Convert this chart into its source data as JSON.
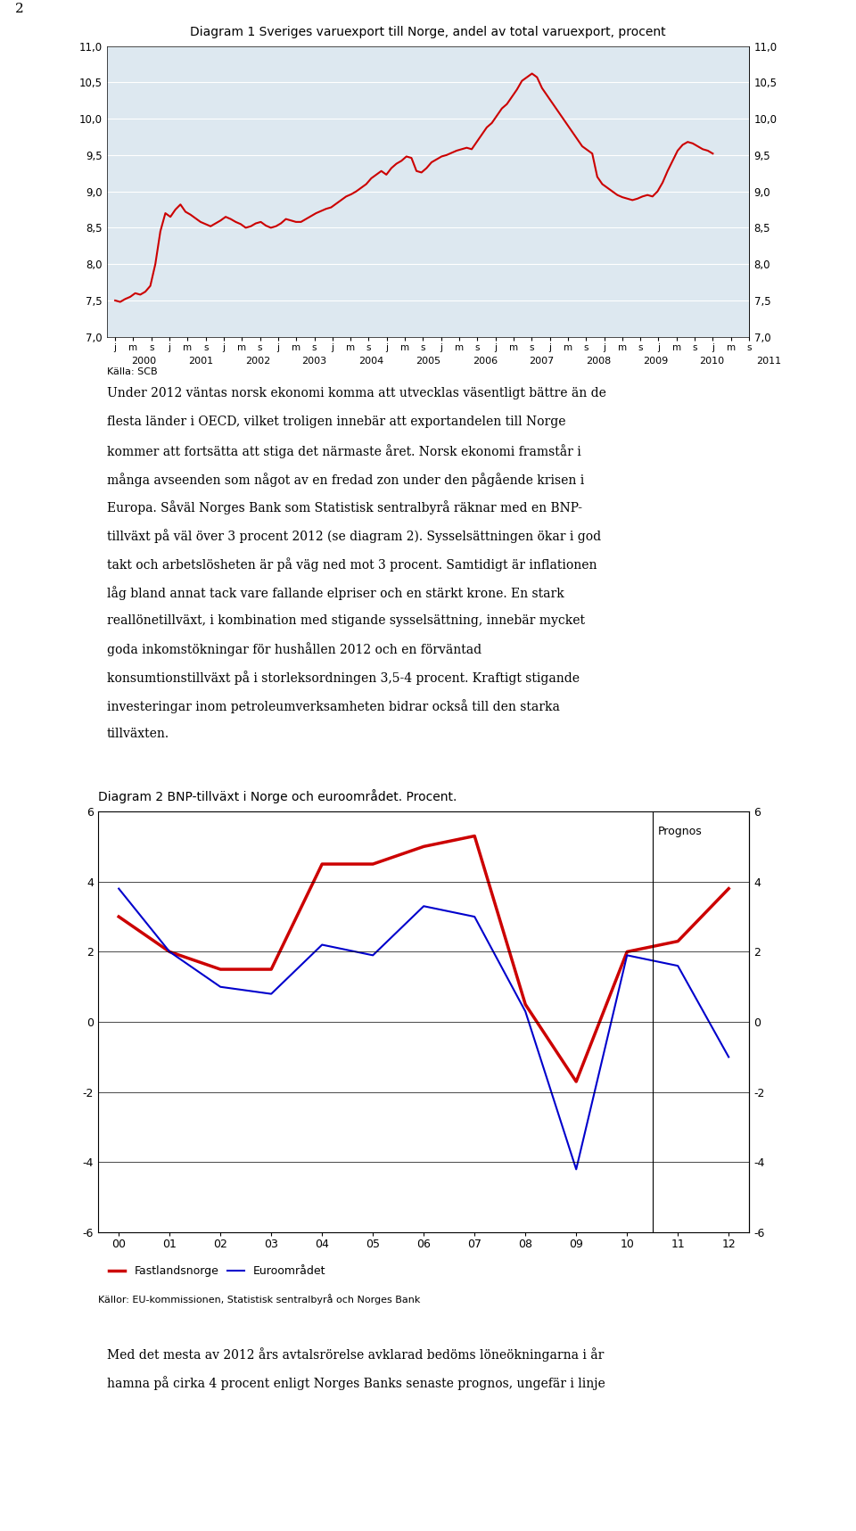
{
  "page_num": "2",
  "chart1": {
    "title": "Diagram 1 Sveriges varuexport till Norge, andel av total varuexport, procent",
    "ylim": [
      7.0,
      11.0
    ],
    "yticks": [
      7.0,
      7.5,
      8.0,
      8.5,
      9.0,
      9.5,
      10.0,
      10.5,
      11.0
    ],
    "source": "Källa: SCB",
    "years": [
      "2000",
      "2001",
      "2002",
      "2003",
      "2004",
      "2005",
      "2006",
      "2007",
      "2008",
      "2009",
      "2010",
      "2011"
    ],
    "color": "#cc0000",
    "bg_color": "#dde8f0",
    "data": [
      7.5,
      7.48,
      7.52,
      7.55,
      7.6,
      7.58,
      7.62,
      7.7,
      8.0,
      8.45,
      8.7,
      8.65,
      8.75,
      8.82,
      8.72,
      8.68,
      8.63,
      8.58,
      8.55,
      8.52,
      8.56,
      8.6,
      8.65,
      8.62,
      8.58,
      8.55,
      8.5,
      8.52,
      8.56,
      8.58,
      8.53,
      8.5,
      8.52,
      8.56,
      8.62,
      8.6,
      8.58,
      8.58,
      8.62,
      8.66,
      8.7,
      8.73,
      8.76,
      8.78,
      8.83,
      8.88,
      8.93,
      8.96,
      9.0,
      9.05,
      9.1,
      9.18,
      9.23,
      9.28,
      9.23,
      9.32,
      9.38,
      9.42,
      9.48,
      9.46,
      9.28,
      9.26,
      9.32,
      9.4,
      9.44,
      9.48,
      9.5,
      9.53,
      9.56,
      9.58,
      9.6,
      9.58,
      9.68,
      9.78,
      9.88,
      9.94,
      10.04,
      10.14,
      10.2,
      10.3,
      10.4,
      10.52,
      10.57,
      10.62,
      10.57,
      10.42,
      10.32,
      10.22,
      10.12,
      10.02,
      9.92,
      9.82,
      9.72,
      9.62,
      9.57,
      9.52,
      9.2,
      9.1,
      9.05,
      9.0,
      8.95,
      8.92,
      8.9,
      8.88,
      8.9,
      8.93,
      8.95,
      8.93,
      9.0,
      9.12,
      9.28,
      9.42,
      9.56,
      9.64,
      9.68,
      9.66,
      9.62,
      9.58,
      9.56,
      9.52
    ]
  },
  "text1_lines": [
    "Under 2012 väntas norsk ekonomi komma att utvecklas väsentligt bättre än de",
    "flesta länder i OECD, vilket troligen innebär att exportandelen till Norge",
    "kommer att fortsätta att stiga det närmaste året. Norsk ekonomi framstår i",
    "många avseenden som något av en fredad zon under den pågående krisen i",
    "Europa. Såväl Norges Bank som Statistisk sentralbyrå räknar med en BNP-",
    "tillväxt på väl över 3 procent 2012 (se diagram 2). Sysselsättningen ökar i god",
    "takt och arbetslösheten är på väg ned mot 3 procent. Samtidigt är inflationen",
    "låg bland annat tack vare fallande elpriser och en stärkt krone. En stark",
    "reallönetillväxt, i kombination med stigande sysselsättning, innebär mycket",
    "goda inkomstökningar för hushållen 2012 och en förväntad",
    "konsumtionstillväxt på i storleksordningen 3,5-4 procent. Kraftigt stigande",
    "investeringar inom petroleumverksamheten bidrar också till den starka",
    "tillväxten."
  ],
  "text1_bold_word": "diagram 2",
  "chart2": {
    "title": "Diagram 2 BNP-tillväxt i Norge och euroområdet. Procent.",
    "ylim": [
      -6,
      6
    ],
    "yticks": [
      -6,
      -4,
      -2,
      0,
      2,
      4,
      6
    ],
    "source": "Källor: EU-kommissionen, Statistisk sentralbyrå och Norges Bank",
    "years": [
      "00",
      "01",
      "02",
      "03",
      "04",
      "05",
      "06",
      "07",
      "08",
      "09",
      "10",
      "11",
      "12"
    ],
    "prognos_label": "Prognos",
    "red_data": [
      3.0,
      2.0,
      1.5,
      1.5,
      4.5,
      4.5,
      5.0,
      5.3,
      0.5,
      -1.7,
      2.0,
      2.3,
      3.8
    ],
    "blue_data": [
      3.8,
      2.0,
      1.0,
      0.8,
      2.2,
      1.9,
      3.3,
      3.0,
      0.3,
      -4.2,
      1.9,
      1.6,
      -1.0
    ],
    "red_color": "#cc0000",
    "blue_color": "#0000cc",
    "legend_red": "Fastlandsnorge",
    "legend_blue": "Euroområdet"
  },
  "text2_lines": [
    "Med det mesta av 2012 års avtalsrörelse avklarad bedöms löneökningarna i år",
    "hamna på cirka 4 procent enligt Norges Banks senaste prognos, ungefär i linje"
  ],
  "background_color": "#ffffff"
}
